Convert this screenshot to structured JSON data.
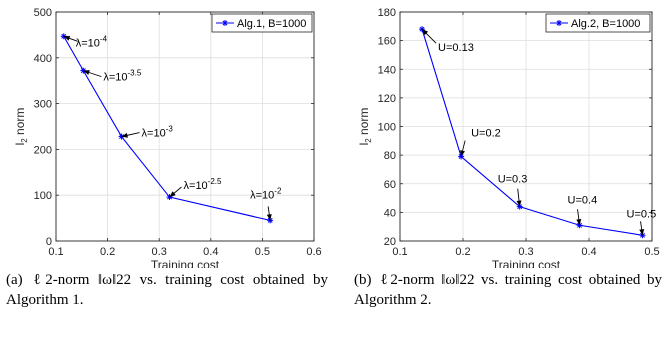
{
  "chart_data": [
    {
      "type": "line",
      "xlabel": "Training cost",
      "ylabel_main": "l",
      "ylabel_sub": "2",
      "ylabel_tail": " norm",
      "xlim": [
        0.1,
        0.6
      ],
      "ylim": [
        0,
        500
      ],
      "xticks": [
        0.1,
        0.2,
        0.3,
        0.4,
        0.5,
        0.6
      ],
      "yticks": [
        0,
        100,
        200,
        300,
        400,
        500
      ],
      "xtick_labels": [
        "0.1",
        "0.2",
        "0.3",
        "0.4",
        "0.5",
        "0.6"
      ],
      "ytick_labels": [
        "0",
        "100",
        "200",
        "300",
        "400",
        "500"
      ],
      "grid": true,
      "legend_position": "top-right",
      "series": [
        {
          "name": "Alg.1, B=1000",
          "color": "#0000ff",
          "marker": "asterisk",
          "x": [
            0.115,
            0.153,
            0.227,
            0.32,
            0.515
          ],
          "y": [
            447,
            372,
            228,
            96,
            45
          ]
        }
      ],
      "annotations": [
        {
          "base": "λ=10",
          "exp": "-4",
          "point": 0
        },
        {
          "base": "λ=10",
          "exp": "-3.5",
          "point": 1
        },
        {
          "base": "λ=10",
          "exp": "-3",
          "point": 2
        },
        {
          "base": "λ=10",
          "exp": "-2.5",
          "point": 3
        },
        {
          "base": "λ=10",
          "exp": "-2",
          "point": 4
        }
      ]
    },
    {
      "type": "line",
      "xlabel": "Training cost",
      "ylabel_main": "l",
      "ylabel_sub": "2",
      "ylabel_tail": " norm",
      "xlim": [
        0.1,
        0.5
      ],
      "ylim": [
        20,
        180
      ],
      "xticks": [
        0.1,
        0.2,
        0.3,
        0.4,
        0.5
      ],
      "yticks": [
        20,
        40,
        60,
        80,
        100,
        120,
        140,
        160,
        180
      ],
      "xtick_labels": [
        "0.1",
        "0.2",
        "0.3",
        "0.4",
        "0.5"
      ],
      "ytick_labels": [
        "20",
        "40",
        "60",
        "80",
        "100",
        "120",
        "140",
        "160",
        "180"
      ],
      "grid": true,
      "legend_position": "top-right",
      "series": [
        {
          "name": "Alg.2, B=1000",
          "color": "#0000ff",
          "marker": "asterisk",
          "x": [
            0.135,
            0.197,
            0.29,
            0.385,
            0.485
          ],
          "y": [
            168,
            79,
            44,
            31,
            24
          ]
        }
      ],
      "annotations": [
        {
          "base": "U=0.13",
          "exp": "",
          "point": 0
        },
        {
          "base": "U=0.2",
          "exp": "",
          "point": 1
        },
        {
          "base": "U=0.3",
          "exp": "",
          "point": 2
        },
        {
          "base": "U=0.4",
          "exp": "",
          "point": 3
        },
        {
          "base": "U=0.5",
          "exp": "",
          "point": 4
        }
      ]
    }
  ],
  "captions": [
    {
      "tag": "(a)",
      "text": "ℓ2-norm ‖ω‖22 vs. training cost obtained by Algorithm 1."
    },
    {
      "tag": "(b)",
      "text": "ℓ2-norm ‖ω‖22 vs. training cost obtained by Algorithm 2."
    }
  ]
}
